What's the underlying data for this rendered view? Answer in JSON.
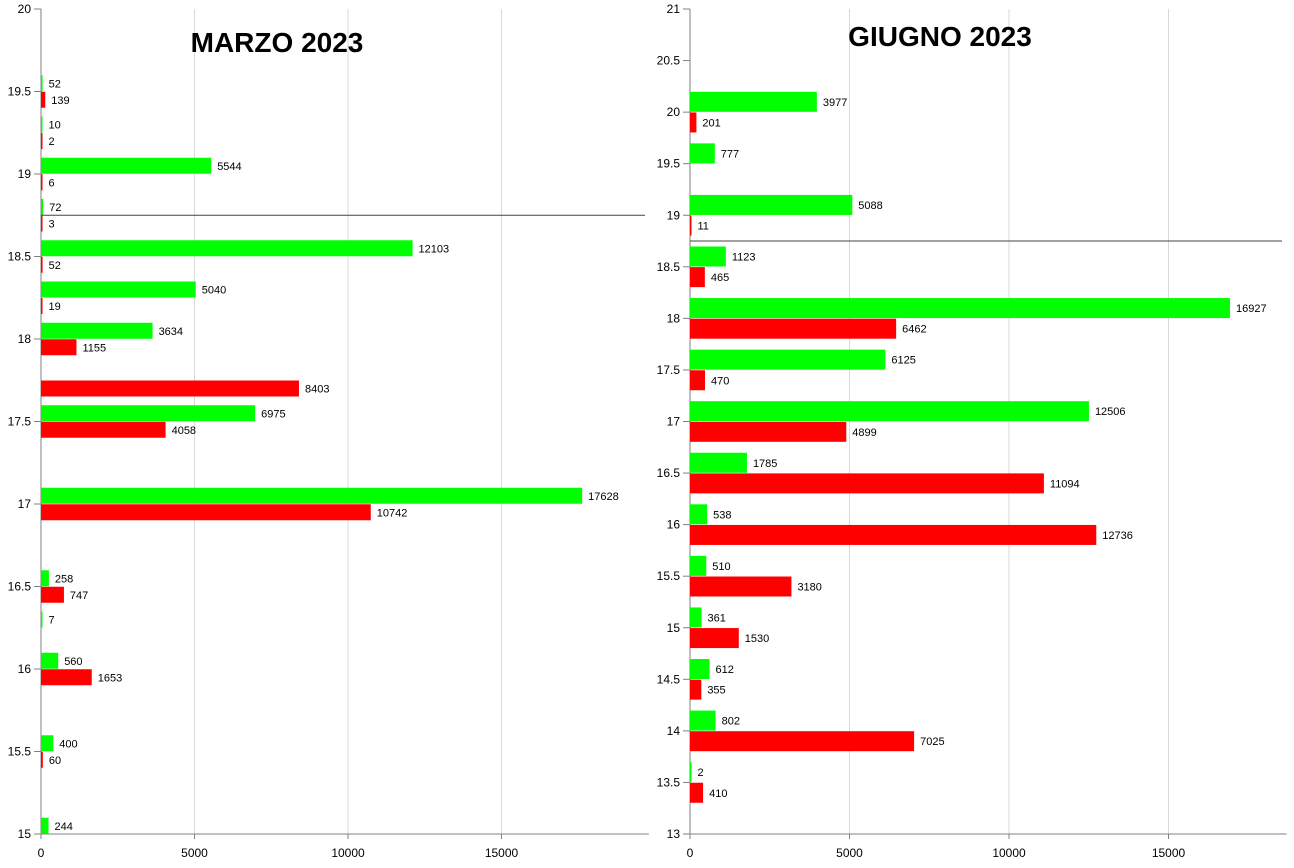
{
  "colors": {
    "green": "#00ff00",
    "red": "#ff0000",
    "grid": "#d9d9d9",
    "axis": "#808080",
    "marker_line": "#444444"
  },
  "chart_data": [
    {
      "type": "bar",
      "orientation": "horizontal",
      "title": "MARZO 2023",
      "grid": true,
      "xlim": [
        0,
        19800
      ],
      "xticks": [
        0,
        5000,
        10000,
        15000
      ],
      "ylim": [
        15,
        20
      ],
      "yticks": [
        15,
        15.5,
        16,
        16.5,
        17,
        17.5,
        18,
        18.5,
        19,
        19.5,
        20
      ],
      "reference_line_y": 18.75,
      "series": [
        {
          "color": "green",
          "points": [
            {
              "y": 19.55,
              "value": 52
            },
            {
              "y": 19.3,
              "value": 10
            },
            {
              "y": 19.05,
              "value": 5544
            },
            {
              "y": 18.8,
              "value": 72
            },
            {
              "y": 18.55,
              "value": 12103
            },
            {
              "y": 18.3,
              "value": 5040
            },
            {
              "y": 18.05,
              "value": 3634
            },
            {
              "y": 17.55,
              "value": 6975
            },
            {
              "y": 17.05,
              "value": 17628
            },
            {
              "y": 16.55,
              "value": 258
            },
            {
              "y": 16.3,
              "value": 7
            },
            {
              "y": 16.05,
              "value": 560
            },
            {
              "y": 15.55,
              "value": 400
            },
            {
              "y": 15.05,
              "value": 244
            }
          ]
        },
        {
          "color": "red",
          "points": [
            {
              "y": 19.45,
              "value": 139
            },
            {
              "y": 19.2,
              "value": 2
            },
            {
              "y": 18.95,
              "value": 6
            },
            {
              "y": 18.7,
              "value": 3
            },
            {
              "y": 18.45,
              "value": 52
            },
            {
              "y": 18.2,
              "value": 19
            },
            {
              "y": 17.95,
              "value": 1155
            },
            {
              "y": 17.7,
              "value": 8403
            },
            {
              "y": 17.45,
              "value": 4058
            },
            {
              "y": 16.95,
              "value": 10742
            },
            {
              "y": 16.45,
              "value": 747
            },
            {
              "y": 15.95,
              "value": 1653
            },
            {
              "y": 15.45,
              "value": 60
            }
          ]
        }
      ]
    },
    {
      "type": "bar",
      "orientation": "horizontal",
      "title": "GIUGNO 2023",
      "grid": true,
      "xlim": [
        0,
        18700
      ],
      "xticks": [
        0,
        5000,
        10000,
        15000
      ],
      "ylim": [
        13,
        21
      ],
      "yticks": [
        13,
        13.5,
        14,
        14.5,
        15,
        15.5,
        16,
        16.5,
        17,
        17.5,
        18,
        18.5,
        19,
        19.5,
        20,
        20.5,
        21
      ],
      "reference_line_y": 18.75,
      "series": [
        {
          "color": "green",
          "points": [
            {
              "y": 20.1,
              "value": 3977
            },
            {
              "y": 19.6,
              "value": 777
            },
            {
              "y": 19.1,
              "value": 5088
            },
            {
              "y": 18.6,
              "value": 1123
            },
            {
              "y": 18.1,
              "value": 16927
            },
            {
              "y": 17.6,
              "value": 6125
            },
            {
              "y": 17.1,
              "value": 12506
            },
            {
              "y": 16.6,
              "value": 1785
            },
            {
              "y": 16.1,
              "value": 538
            },
            {
              "y": 15.6,
              "value": 510
            },
            {
              "y": 15.1,
              "value": 361
            },
            {
              "y": 14.6,
              "value": 612
            },
            {
              "y": 14.1,
              "value": 802
            },
            {
              "y": 13.6,
              "value": 2
            }
          ]
        },
        {
          "color": "red",
          "points": [
            {
              "y": 19.9,
              "value": 201
            },
            {
              "y": 18.9,
              "value": 11
            },
            {
              "y": 18.4,
              "value": 465
            },
            {
              "y": 17.9,
              "value": 6462
            },
            {
              "y": 17.4,
              "value": 470
            },
            {
              "y": 16.9,
              "value": 4899
            },
            {
              "y": 16.4,
              "value": 11094
            },
            {
              "y": 15.9,
              "value": 12736
            },
            {
              "y": 15.4,
              "value": 3180
            },
            {
              "y": 14.9,
              "value": 1530
            },
            {
              "y": 14.4,
              "value": 355
            },
            {
              "y": 13.9,
              "value": 7025
            },
            {
              "y": 13.4,
              "value": 410
            }
          ]
        }
      ]
    }
  ]
}
